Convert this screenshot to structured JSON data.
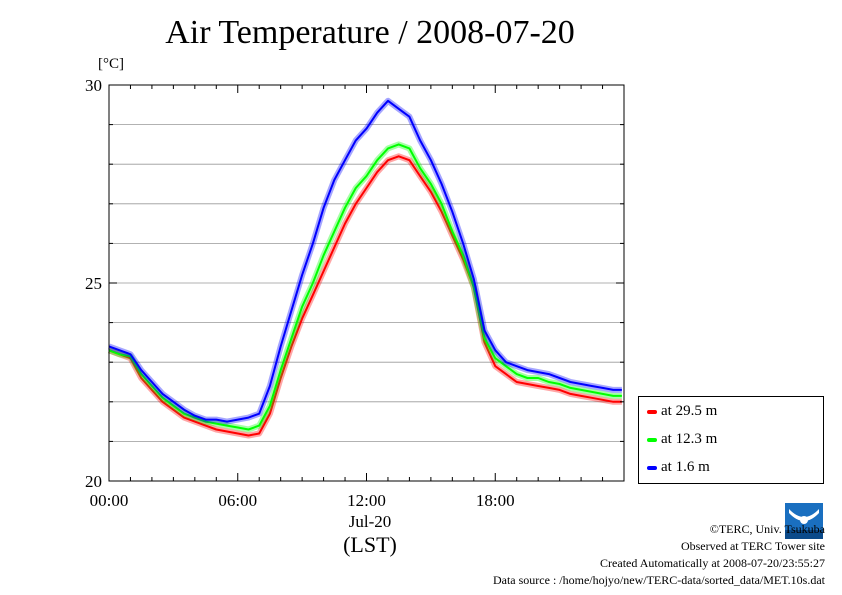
{
  "title": "Air Temperature / 2008-07-20",
  "footer": {
    "copyright": "©TERC, Univ. Tsukuba",
    "site": "Observed at TERC Tower site",
    "created": "Created Automatically at 2008-07-20/23:55:27",
    "source": "Data source : /home/hojyo/new/TERC-data/sorted_data/MET.10s.dat",
    "logo_text": "TERC"
  },
  "chart_data": {
    "type": "line",
    "title": "Air Temperature / 2008-07-20",
    "ylabel": "[°C]",
    "x_date_label": "Jul-20",
    "xlabel": "(LST)",
    "x_ticks": [
      "00:00",
      "06:00",
      "12:00",
      "18:00"
    ],
    "x_tick_hours": [
      0,
      6,
      12,
      18
    ],
    "xlim_hours": [
      0,
      24
    ],
    "y_ticks": [
      20,
      25,
      30
    ],
    "ylim": [
      20,
      30
    ],
    "grid": true,
    "legend_position": "bottom-right",
    "x": [
      0,
      0.5,
      1,
      1.5,
      2,
      2.5,
      3,
      3.5,
      4,
      4.5,
      5,
      5.5,
      6,
      6.5,
      7,
      7.5,
      8,
      8.5,
      9,
      9.5,
      10,
      10.5,
      11,
      11.5,
      12,
      12.5,
      13,
      13.5,
      14,
      14.5,
      15,
      15.5,
      16,
      16.5,
      17,
      17.5,
      18,
      18.5,
      19,
      19.5,
      20,
      20.5,
      21,
      21.5,
      22,
      22.5,
      23,
      23.5,
      23.9
    ],
    "series": [
      {
        "name": "at 29.5 m",
        "color": "#ff0000",
        "values": [
          23.3,
          23.2,
          23.1,
          22.6,
          22.3,
          22.0,
          21.8,
          21.6,
          21.5,
          21.4,
          21.3,
          21.25,
          21.2,
          21.15,
          21.2,
          21.7,
          22.6,
          23.4,
          24.1,
          24.7,
          25.3,
          25.9,
          26.5,
          27.0,
          27.4,
          27.8,
          28.1,
          28.2,
          28.1,
          27.7,
          27.3,
          26.8,
          26.2,
          25.6,
          24.9,
          23.5,
          22.9,
          22.7,
          22.5,
          22.45,
          22.4,
          22.35,
          22.3,
          22.2,
          22.15,
          22.1,
          22.05,
          22.0,
          22.0
        ]
      },
      {
        "name": "at 12.3 m",
        "color": "#00ff00",
        "values": [
          23.3,
          23.2,
          23.15,
          22.7,
          22.4,
          22.1,
          21.9,
          21.7,
          21.6,
          21.5,
          21.45,
          21.4,
          21.35,
          21.3,
          21.4,
          21.9,
          22.8,
          23.6,
          24.4,
          25.0,
          25.7,
          26.3,
          26.9,
          27.4,
          27.7,
          28.1,
          28.4,
          28.5,
          28.4,
          27.9,
          27.5,
          27.0,
          26.3,
          25.7,
          24.9,
          23.6,
          23.1,
          22.9,
          22.7,
          22.6,
          22.6,
          22.5,
          22.45,
          22.35,
          22.3,
          22.25,
          22.2,
          22.15,
          22.15
        ]
      },
      {
        "name": "at 1.6 m",
        "color": "#0000ff",
        "values": [
          23.4,
          23.3,
          23.2,
          22.8,
          22.5,
          22.2,
          22.0,
          21.8,
          21.65,
          21.55,
          21.55,
          21.5,
          21.55,
          21.6,
          21.7,
          22.4,
          23.4,
          24.3,
          25.2,
          26.0,
          26.9,
          27.6,
          28.1,
          28.6,
          28.9,
          29.3,
          29.6,
          29.4,
          29.2,
          28.6,
          28.1,
          27.5,
          26.8,
          26.0,
          25.1,
          23.8,
          23.3,
          23.0,
          22.9,
          22.8,
          22.75,
          22.7,
          22.6,
          22.5,
          22.45,
          22.4,
          22.35,
          22.3,
          22.3
        ]
      }
    ]
  }
}
